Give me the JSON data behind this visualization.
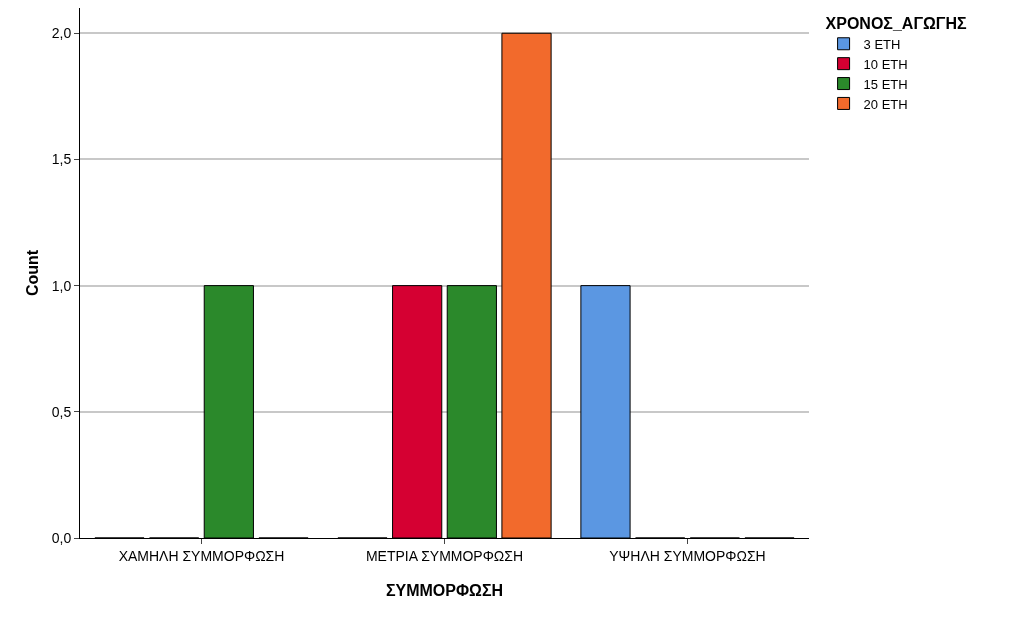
{
  "chart_data": {
    "type": "bar",
    "xlabel": "ΣΥΜΜΟΡΦΩΣΗ",
    "ylabel": "Count",
    "legend_title": "ΧΡΟΝΟΣ_ΑΓΩΓΗΣ",
    "categories": [
      "ΧΑΜΗΛΗ ΣΥΜΜΟΡΦΩΣΗ",
      "ΜΕΤΡΙΑ ΣΥΜΜΟΡΦΩΣΗ",
      "ΥΨΗΛΗ ΣΥΜΜΟΡΦΩΣΗ"
    ],
    "series": [
      {
        "name": "3 ΕΤΗ",
        "color": "#5b97e2",
        "values": [
          0,
          0,
          1
        ]
      },
      {
        "name": "10 ΕΤΗ",
        "color": "#d50032",
        "values": [
          0,
          1,
          0
        ]
      },
      {
        "name": "15 ΕΤΗ",
        "color": "#2b892b",
        "values": [
          1,
          1,
          0
        ]
      },
      {
        "name": "20 ΕΤΗ",
        "color": "#f26a2c",
        "values": [
          0,
          2,
          0
        ]
      }
    ],
    "ylim": [
      0,
      2.1
    ],
    "yticks": [
      {
        "value": 0,
        "label": "0,0"
      },
      {
        "value": 0.5,
        "label": "0,5"
      },
      {
        "value": 1,
        "label": "1,0"
      },
      {
        "value": 1.5,
        "label": "1,5"
      },
      {
        "value": 2,
        "label": "2,0"
      }
    ],
    "grid": "y",
    "legend": "top right"
  }
}
